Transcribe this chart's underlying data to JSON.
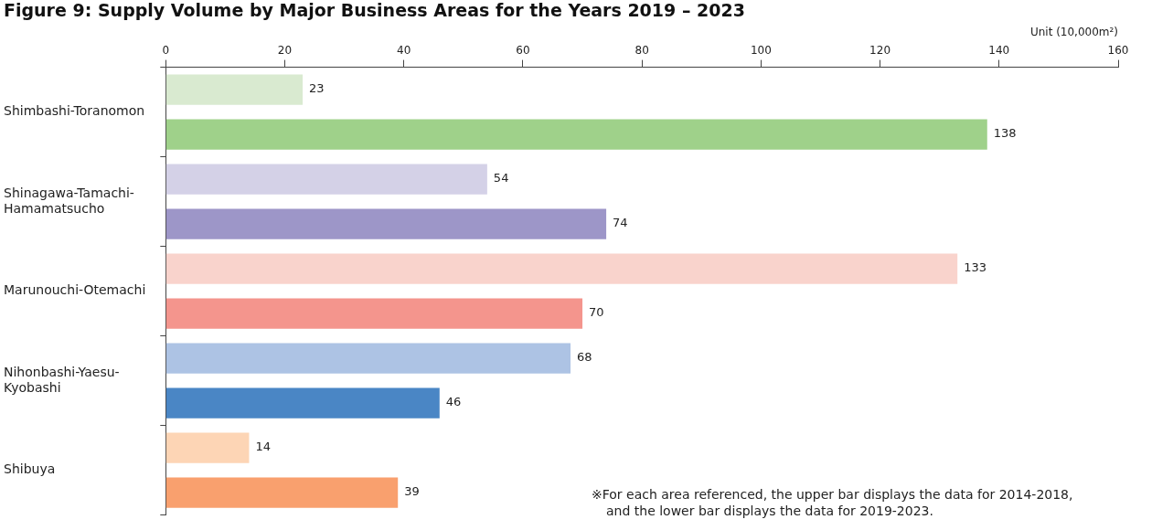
{
  "chart_data": {
    "type": "bar",
    "orientation": "horizontal",
    "title": "Figure 9: Supply Volume by Major Business Areas for the Years 2019 – 2023",
    "xlabel": "Unit (10,000m²)",
    "categories": [
      "Shimbashi-Toranomon",
      "Shinagawa-Tamachi-Hamamatsucho",
      "Marunouchi-Otemachi",
      "Nihonbashi-Yaesu-Kyobashi",
      "Shibuya"
    ],
    "series": [
      {
        "colors": [
          "#d9ead0",
          "#d4d1e7",
          "#f9d3cc",
          "#adc3e4",
          "#fdd5b5"
        ],
        "values": [
          23,
          54,
          133,
          68,
          14
        ]
      },
      {
        "colors": [
          "#9fd18a",
          "#9d96c8",
          "#f4958d",
          "#4a86c5",
          "#f9a06e"
        ],
        "values": [
          138,
          74,
          70,
          46,
          39
        ]
      }
    ],
    "xlim": [
      0,
      160
    ],
    "xticks": [
      0,
      20,
      40,
      60,
      80,
      100,
      120,
      140,
      160
    ],
    "grid": false,
    "legend": false,
    "data_labels": true,
    "annotations": [
      "※For each area referenced, the upper bar displays the data for 2014-2018,\nand the lower bar displays the data for 2019-2023."
    ]
  }
}
